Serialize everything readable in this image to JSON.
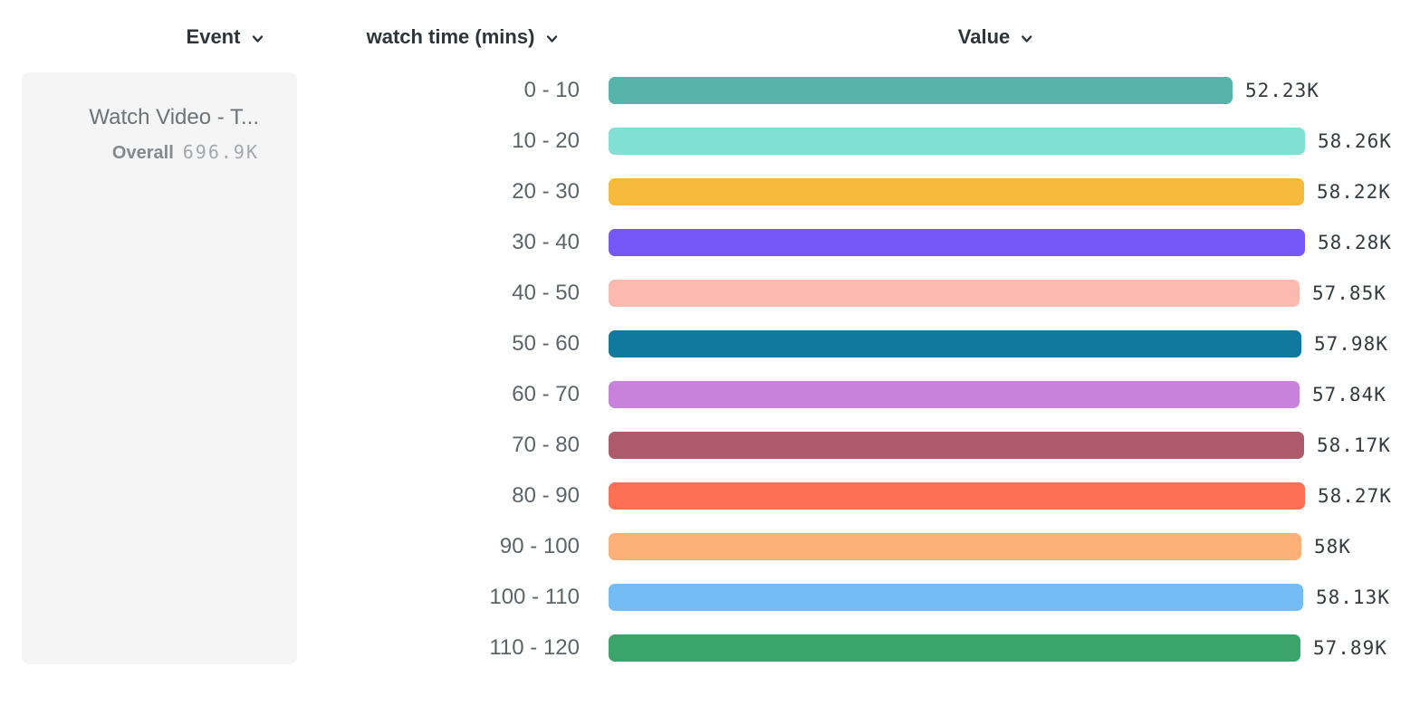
{
  "header": {
    "columns": [
      {
        "label": "Event"
      },
      {
        "label": "watch time (mins)"
      },
      {
        "label": "Value"
      }
    ]
  },
  "event_card": {
    "title": "Watch Video - T...",
    "overall_label": "Overall",
    "overall_value": "696.9K"
  },
  "chart_data": {
    "type": "bar",
    "orientation": "horizontal",
    "title": "",
    "xlabel": "Value",
    "ylabel": "watch time (mins)",
    "xlim": [
      0,
      58280
    ],
    "grid": false,
    "categories": [
      "0 - 10",
      "10 - 20",
      "20 - 30",
      "30 - 40",
      "40 - 50",
      "50 - 60",
      "60 - 70",
      "70 - 80",
      "80 - 90",
      "90 - 100",
      "100 - 110",
      "110 - 120"
    ],
    "values": [
      52230,
      58260,
      58220,
      58280,
      57850,
      57980,
      57840,
      58170,
      58270,
      58000,
      58130,
      57890
    ],
    "value_labels": [
      "52.23K",
      "58.26K",
      "58.22K",
      "58.28K",
      "57.85K",
      "57.98K",
      "57.84K",
      "58.17K",
      "58.27K",
      "58K",
      "58.13K",
      "57.89K"
    ],
    "colors": [
      "#57b4ac",
      "#7fe0d3",
      "#f6b93c",
      "#7557f7",
      "#fbb9b0",
      "#11799e",
      "#c982dc",
      "#ae5a6d",
      "#fd7053",
      "#fdb077",
      "#73bcf5",
      "#3ba46b"
    ]
  },
  "ui_colors": {
    "header_text": "#2e3438",
    "row_label_text": "#5d6468",
    "value_text": "#343a3f",
    "card_bg": "#f5f5f6",
    "card_title_text": "#6d7275",
    "overall_label_text": "#85898c",
    "overall_value_text": "#a5a8ab"
  }
}
